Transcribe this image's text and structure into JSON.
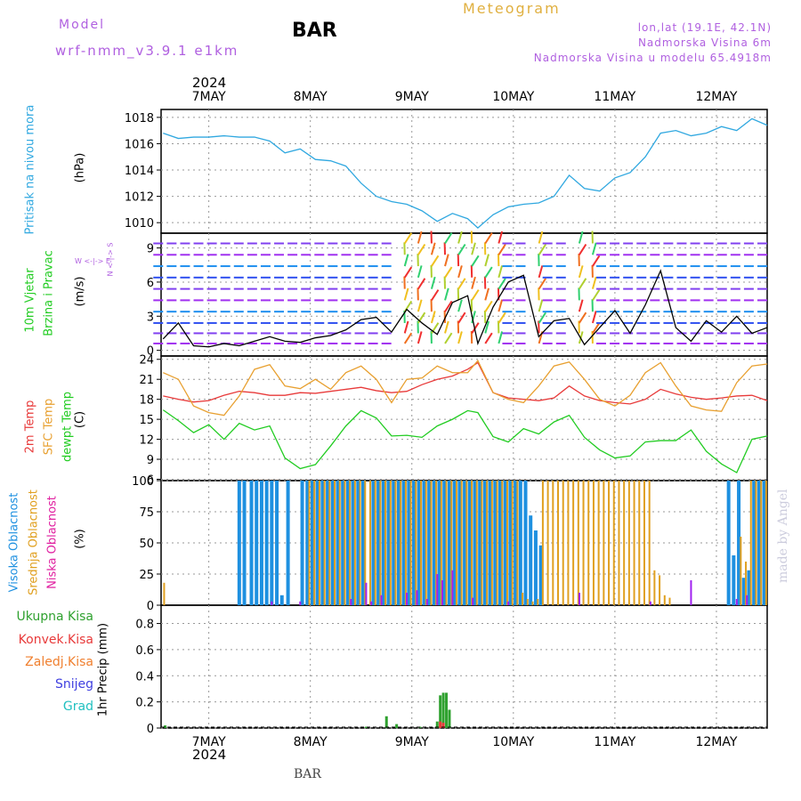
{
  "header": {
    "model_label": "Model",
    "run_label": "wrf-nmm_v3.9.1 e1km",
    "station": "BAR",
    "title": "Meteogram",
    "coords": "lon,lat (19.1E, 42.1N)",
    "elev": "Nadmorska Visina 6m",
    "model_elev": "Nadmorska Visina u modelu 65.4918m",
    "year_top": "2024",
    "year_bottom": "2024",
    "footer_station": "BAR",
    "watermark": "made by Angel"
  },
  "days": [
    "7MAY",
    "8MAY",
    "9MAY",
    "10MAY",
    "11MAY",
    "12MAY"
  ],
  "axis_labels": {
    "pressure": {
      "name": "Pritisak na nivou mora",
      "unit": "(hPa)"
    },
    "wind": {
      "name1": "10m Vjetar",
      "name2": "Brzina i Pravac",
      "unit": "(m/s)",
      "compass_ns": "N <-|-> S",
      "compass_ew": "W <-|-> E"
    },
    "temp": {
      "t2m": "2m Temp",
      "sfc": "SFC Temp",
      "dew": "dewpt Temp",
      "unit": "(C)"
    },
    "cloud": {
      "high": "Visoka Oblacnost",
      "mid": "Srednja Oblacnost",
      "low": "Niska Oblacnost",
      "unit": "(%)"
    },
    "precip": {
      "total": "Ukupna Kisa",
      "conv": "Konvek.Kisa",
      "frozen": "Zaledj.Kisa",
      "snow": "Snijeg",
      "hail": "Grad",
      "unit": "1hr Precip (mm)"
    }
  },
  "colors": {
    "pressure": "#30a8e0",
    "t2m": "#e83a3a",
    "sfc": "#e8a030",
    "dew": "#22cc22",
    "cloud_high": "#1e90e0",
    "cloud_mid": "#e0a020",
    "cloud_low": "#a020f0",
    "precip_total": "#2fa12f",
    "precip_conv": "#e83a3a",
    "precip_frozen": "#f08030",
    "precip_snow": "#4040e0",
    "precip_hail": "#20c0c0",
    "purple_text": "#b060e0"
  },
  "chart_data": [
    {
      "type": "line",
      "title": "Pritisak na nivou mora",
      "ylabel": "(hPa)",
      "yticks": [
        1010,
        1012,
        1014,
        1016,
        1018
      ],
      "ylim": [
        1009.2,
        1018.6
      ],
      "xlim": [
        6.53,
        12.5
      ],
      "x": [
        6.55,
        6.7,
        6.85,
        7.0,
        7.15,
        7.3,
        7.45,
        7.6,
        7.75,
        7.9,
        8.05,
        8.2,
        8.35,
        8.5,
        8.65,
        8.8,
        8.95,
        9.1,
        9.25,
        9.4,
        9.55,
        9.65,
        9.8,
        9.95,
        10.1,
        10.25,
        10.4,
        10.55,
        10.7,
        10.85,
        11.0,
        11.15,
        11.3,
        11.45,
        11.6,
        11.75,
        11.9,
        12.05,
        12.2,
        12.35,
        12.5
      ],
      "series": [
        {
          "values": [
            1016.8,
            1016.4,
            1016.5,
            1016.5,
            1016.6,
            1016.5,
            1016.5,
            1016.2,
            1015.3,
            1015.6,
            1014.8,
            1014.7,
            1014.3,
            1013.0,
            1012.0,
            1011.6,
            1011.4,
            1010.9,
            1010.1,
            1010.7,
            1010.3,
            1009.6,
            1010.6,
            1011.2,
            1011.4,
            1011.5,
            1012.0,
            1013.6,
            1012.6,
            1012.4,
            1013.4,
            1013.8,
            1015.0,
            1016.8,
            1017.0,
            1016.6,
            1016.8,
            1017.3,
            1017.0,
            1017.9,
            1017.4
          ]
        }
      ]
    },
    {
      "type": "line",
      "title": "10m Vjetar Brzina i Pravac",
      "ylabel": "(m/s)",
      "yticks": [
        0,
        3,
        6,
        9
      ],
      "ylim": [
        -0.5,
        10.3
      ],
      "xlim": [
        6.53,
        12.5
      ],
      "x": [
        6.55,
        6.7,
        6.85,
        7.0,
        7.15,
        7.3,
        7.45,
        7.6,
        7.75,
        7.9,
        8.05,
        8.2,
        8.35,
        8.5,
        8.65,
        8.8,
        8.95,
        9.1,
        9.25,
        9.4,
        9.55,
        9.65,
        9.8,
        9.95,
        10.1,
        10.25,
        10.4,
        10.55,
        10.7,
        10.85,
        11.0,
        11.15,
        11.3,
        11.45,
        11.6,
        11.75,
        11.9,
        12.05,
        12.2,
        12.35,
        12.5
      ],
      "series": [
        {
          "values": [
            1.0,
            2.4,
            0.4,
            0.3,
            0.6,
            0.4,
            0.8,
            1.2,
            0.8,
            0.7,
            1.1,
            1.3,
            1.8,
            2.7,
            2.9,
            1.6,
            3.6,
            2.4,
            1.4,
            4.2,
            4.8,
            0.6,
            3.8,
            6.0,
            6.6,
            1.2,
            2.6,
            2.8,
            0.5,
            2.0,
            3.5,
            1.5,
            4.0,
            7.0,
            2.0,
            0.8,
            2.6,
            1.6,
            3.0,
            1.5,
            2.0
          ]
        }
      ]
    },
    {
      "type": "line",
      "title": "2m Temp / SFC Temp / dewpt Temp",
      "ylabel": "(C)",
      "yticks": [
        6,
        9,
        12,
        15,
        18,
        21,
        24
      ],
      "ylim": [
        5.8,
        24.5
      ],
      "xlim": [
        6.53,
        12.5
      ],
      "x": [
        6.55,
        6.7,
        6.85,
        7.0,
        7.15,
        7.3,
        7.45,
        7.6,
        7.75,
        7.9,
        8.05,
        8.2,
        8.35,
        8.5,
        8.65,
        8.8,
        8.95,
        9.1,
        9.25,
        9.4,
        9.55,
        9.65,
        9.8,
        9.95,
        10.1,
        10.25,
        10.4,
        10.55,
        10.7,
        10.85,
        11.0,
        11.15,
        11.3,
        11.45,
        11.6,
        11.75,
        11.9,
        12.05,
        12.2,
        12.35,
        12.5
      ],
      "series": [
        {
          "name": "2m Temp",
          "values": [
            18.5,
            18.0,
            17.6,
            17.8,
            18.6,
            19.2,
            19.0,
            18.6,
            18.6,
            19.0,
            18.9,
            19.2,
            19.5,
            19.8,
            19.3,
            19.0,
            19.2,
            20.2,
            21.0,
            21.5,
            22.5,
            23.5,
            19.0,
            18.2,
            18.0,
            17.8,
            18.2,
            20.0,
            18.5,
            17.8,
            17.5,
            17.3,
            18.0,
            19.5,
            18.8,
            18.3,
            18.0,
            18.2,
            18.5,
            18.6,
            17.8
          ]
        },
        {
          "name": "SFC Temp",
          "values": [
            22.0,
            21.0,
            17.0,
            16.0,
            15.6,
            18.5,
            22.5,
            23.2,
            20.0,
            19.6,
            21.0,
            19.5,
            22.0,
            23.0,
            21.0,
            17.5,
            21.0,
            21.2,
            23.0,
            22.0,
            22.0,
            23.8,
            19.0,
            18.0,
            17.5,
            20.0,
            23.0,
            23.6,
            21.0,
            18.0,
            17.0,
            18.6,
            22.0,
            23.5,
            20.0,
            17.0,
            16.4,
            16.2,
            20.5,
            23.0,
            23.3
          ]
        },
        {
          "name": "dewpt Temp",
          "values": [
            16.4,
            14.8,
            13.0,
            14.2,
            12.0,
            14.4,
            13.4,
            14.0,
            9.2,
            7.6,
            8.2,
            11.0,
            14.0,
            16.3,
            15.2,
            12.5,
            12.6,
            12.3,
            14.0,
            15.0,
            16.3,
            16.0,
            12.4,
            11.6,
            13.6,
            12.8,
            14.6,
            15.6,
            12.3,
            10.4,
            9.2,
            9.5,
            11.6,
            11.8,
            11.8,
            13.4,
            10.2,
            8.3,
            7.0,
            12.0,
            12.5
          ]
        }
      ]
    },
    {
      "type": "bar",
      "title": "Visoka / Srednja / Niska Oblacnost",
      "ylabel": "(%)",
      "yticks": [
        0,
        25,
        50,
        75,
        100
      ],
      "ylim": [
        0,
        100
      ],
      "xlim": [
        6.53,
        12.5
      ],
      "series": [
        {
          "name": "Visoka Oblacnost",
          "x": [
            7.3,
            7.35,
            7.42,
            7.47,
            7.52,
            7.57,
            7.62,
            7.67,
            7.72,
            7.78,
            7.92,
            7.97,
            8.02,
            8.07,
            8.12,
            8.17,
            8.22,
            8.27,
            8.32,
            8.37,
            8.42,
            8.47,
            8.52,
            8.62,
            8.67,
            8.72,
            8.77,
            8.82,
            8.87,
            8.92,
            8.97,
            9.02,
            9.07,
            9.12,
            9.17,
            9.22,
            9.27,
            9.32,
            9.37,
            9.42,
            9.47,
            9.52,
            9.57,
            9.62,
            9.67,
            9.72,
            9.77,
            9.82,
            9.87,
            9.92,
            9.97,
            10.02,
            10.07,
            10.12,
            10.17,
            10.22,
            10.27,
            12.12,
            12.17,
            12.22,
            12.27,
            12.32,
            12.37,
            12.42,
            12.47
          ],
          "values": [
            100,
            100,
            100,
            100,
            100,
            100,
            100,
            100,
            8,
            100,
            100,
            100,
            100,
            100,
            100,
            100,
            100,
            100,
            100,
            100,
            100,
            100,
            100,
            100,
            100,
            100,
            100,
            100,
            100,
            100,
            100,
            100,
            100,
            100,
            100,
            100,
            100,
            100,
            100,
            100,
            100,
            100,
            100,
            100,
            100,
            100,
            100,
            100,
            100,
            100,
            100,
            100,
            100,
            100,
            72,
            60,
            48,
            100,
            40,
            100,
            22,
            28,
            100,
            100,
            100
          ]
        },
        {
          "name": "Srednja Oblacnost",
          "x": [
            6.56,
            7.99,
            8.04,
            8.09,
            8.14,
            8.19,
            8.24,
            8.29,
            8.34,
            8.39,
            8.44,
            8.49,
            8.54,
            8.59,
            8.64,
            8.69,
            8.74,
            8.79,
            8.84,
            8.89,
            8.94,
            8.99,
            9.04,
            9.09,
            9.14,
            9.19,
            9.24,
            9.29,
            9.34,
            9.39,
            9.44,
            9.49,
            9.54,
            9.59,
            9.64,
            9.69,
            9.74,
            9.79,
            9.84,
            9.89,
            9.94,
            9.99,
            10.04,
            10.09,
            10.14,
            10.19,
            10.24,
            10.29,
            10.34,
            10.39,
            10.44,
            10.49,
            10.54,
            10.59,
            10.64,
            10.69,
            10.74,
            10.79,
            10.84,
            10.89,
            10.94,
            10.99,
            11.04,
            11.09,
            11.14,
            11.19,
            11.24,
            11.29,
            11.34,
            11.39,
            11.44,
            11.49,
            11.54,
            12.24,
            12.29,
            12.34,
            12.39,
            12.44,
            12.49
          ],
          "values": [
            18,
            100,
            100,
            100,
            100,
            100,
            100,
            100,
            100,
            100,
            100,
            100,
            100,
            100,
            100,
            100,
            100,
            100,
            100,
            100,
            100,
            100,
            100,
            100,
            100,
            100,
            100,
            100,
            100,
            100,
            100,
            100,
            100,
            100,
            100,
            100,
            100,
            100,
            100,
            100,
            100,
            100,
            100,
            10,
            5,
            3,
            5,
            100,
            100,
            100,
            100,
            100,
            100,
            100,
            100,
            100,
            100,
            100,
            100,
            100,
            100,
            100,
            100,
            100,
            100,
            100,
            100,
            100,
            100,
            28,
            24,
            8,
            6,
            55,
            35,
            100,
            100,
            100,
            100
          ]
        },
        {
          "name": "Niska Oblacnost",
          "x": [
            7.62,
            7.9,
            8.4,
            8.55,
            8.6,
            8.7,
            8.95,
            9.05,
            9.15,
            9.25,
            9.3,
            9.4,
            9.6,
            9.95,
            10.65,
            11.35,
            11.75,
            12.2,
            12.3
          ],
          "values": [
            3,
            3,
            5,
            18,
            3,
            8,
            10,
            12,
            5,
            25,
            20,
            28,
            6,
            3,
            10,
            3,
            20,
            5,
            8
          ]
        }
      ]
    },
    {
      "type": "bar",
      "title": "1hr Precip",
      "ylabel": "1hr Precip (mm)",
      "yticks": [
        0,
        0.2,
        0.4,
        0.6,
        0.8
      ],
      "ylim": [
        0,
        0.94
      ],
      "xlim": [
        6.53,
        12.5
      ],
      "series": [
        {
          "name": "Ukupna Kisa",
          "x": [
            6.57,
            8.55,
            8.75,
            8.85,
            9.08,
            9.25,
            9.28,
            9.31,
            9.34,
            9.37
          ],
          "values": [
            0.02,
            0.01,
            0.09,
            0.03,
            0.01,
            0.05,
            0.25,
            0.27,
            0.27,
            0.14
          ]
        },
        {
          "name": "Konvek.Kisa",
          "x": [
            9.28,
            9.31
          ],
          "values": [
            0.05,
            0.04
          ]
        }
      ]
    }
  ]
}
